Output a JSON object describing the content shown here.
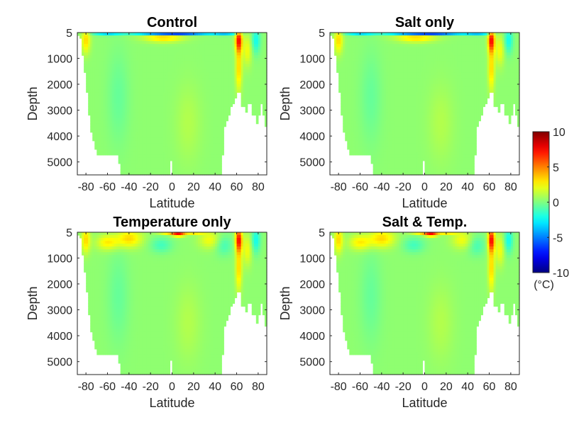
{
  "chart_data": {
    "type": "heatmap",
    "panels": [
      {
        "title": "Control",
        "variant": "control"
      },
      {
        "title": "Salt only",
        "variant": "salt"
      },
      {
        "title": "Temperature only",
        "variant": "temp"
      },
      {
        "title": "Salt & Temp.",
        "variant": "both"
      }
    ],
    "xlabel": "Latitude",
    "ylabel": "Depth",
    "xlim": [
      -88,
      88
    ],
    "ylim": [
      5,
      5500
    ],
    "xticks": [
      "-80",
      "-60",
      "-40",
      "-20",
      "0",
      "20",
      "40",
      "60",
      "80"
    ],
    "xtick_values": [
      -80,
      -60,
      -40,
      -20,
      0,
      20,
      40,
      60,
      80
    ],
    "yticks": [
      "5",
      "1000",
      "2000",
      "3000",
      "4000",
      "5000"
    ],
    "ytick_values": [
      5,
      1000,
      2000,
      3000,
      4000,
      5000
    ],
    "colorbar": {
      "colormap": "jet",
      "range": [
        -10,
        10
      ],
      "ticks": [
        "10",
        "5",
        "0",
        "-5",
        "-10"
      ],
      "tick_values": [
        10,
        5,
        0,
        -5,
        -10
      ],
      "unit": "(°C)"
    },
    "background_value": 0.3,
    "bathymetry_max_depth": [
      [
        -88,
        0
      ],
      [
        -85,
        200
      ],
      [
        -82,
        1200
      ],
      [
        -79,
        2300
      ],
      [
        -77,
        3200
      ],
      [
        -75,
        3900
      ],
      [
        -72,
        4400
      ],
      [
        -69,
        4700
      ],
      [
        -50,
        4700
      ],
      [
        -48,
        5500
      ],
      [
        -3,
        5500
      ],
      [
        -3,
        4900
      ],
      [
        -2,
        4900
      ],
      [
        -2,
        5500
      ],
      [
        -1,
        4900
      ],
      [
        0,
        4900
      ],
      [
        0,
        5500
      ],
      [
        46,
        5500
      ],
      [
        47,
        4700
      ],
      [
        48,
        4300
      ],
      [
        49,
        3600
      ],
      [
        53,
        3200
      ],
      [
        55,
        2900
      ],
      [
        61,
        2300
      ],
      [
        64,
        2300
      ],
      [
        65,
        2900
      ],
      [
        68,
        2900
      ],
      [
        69,
        3100
      ],
      [
        70,
        3100
      ],
      [
        71,
        2700
      ],
      [
        74,
        2700
      ],
      [
        75,
        3200
      ],
      [
        77,
        3200
      ],
      [
        78,
        3500
      ],
      [
        80,
        3500
      ],
      [
        82,
        2800
      ],
      [
        84,
        2800
      ],
      [
        86,
        3600
      ],
      [
        88,
        3600
      ]
    ],
    "anomalies": [
      {
        "variants": [
          "control",
          "salt"
        ],
        "lat": 0,
        "depth": 5,
        "lat_width": 22,
        "depth_width": 80,
        "value": -10
      },
      {
        "variants": [
          "control",
          "salt"
        ],
        "lat": -22,
        "depth": 5,
        "lat_width": 20,
        "depth_width": 60,
        "value": -6
      },
      {
        "variants": [
          "control",
          "salt"
        ],
        "lat": 25,
        "depth": 5,
        "lat_width": 20,
        "depth_width": 60,
        "value": -6
      },
      {
        "variants": [
          "control",
          "salt"
        ],
        "lat": -60,
        "depth": 20,
        "lat_width": 14,
        "depth_width": 90,
        "value": -4
      },
      {
        "variants": [
          "control",
          "salt"
        ],
        "lat": 50,
        "depth": 20,
        "lat_width": 12,
        "depth_width": 90,
        "value": -4
      },
      {
        "variants": [
          "control",
          "salt"
        ],
        "lat": -8,
        "depth": 200,
        "lat_width": 18,
        "depth_width": 180,
        "value": 3
      },
      {
        "variants": [
          "temp",
          "both"
        ],
        "lat": 6,
        "depth": 60,
        "lat_width": 6,
        "depth_width": 110,
        "value": 6
      },
      {
        "variants": [
          "temp",
          "both"
        ],
        "lat": -3,
        "depth": 30,
        "lat_width": 10,
        "depth_width": 60,
        "value": 3
      },
      {
        "variants": [
          "temp",
          "both"
        ],
        "lat": 20,
        "depth": 40,
        "lat_width": 10,
        "depth_width": 60,
        "value": 2.5
      },
      {
        "variants": [
          "temp",
          "both"
        ],
        "lat": -40,
        "depth": 250,
        "lat_width": 12,
        "depth_width": 350,
        "value": 3
      },
      {
        "variants": [
          "temp",
          "both"
        ],
        "lat": -60,
        "depth": 400,
        "lat_width": 10,
        "depth_width": 300,
        "value": 2.5
      },
      {
        "variants": [
          "temp",
          "both"
        ],
        "lat": 35,
        "depth": 300,
        "lat_width": 10,
        "depth_width": 350,
        "value": 2
      },
      {
        "variants": [
          "temp",
          "both"
        ],
        "lat": -10,
        "depth": 500,
        "lat_width": 10,
        "depth_width": 300,
        "value": -1.5
      },
      {
        "variants": [
          "temp",
          "both"
        ],
        "lat": 48,
        "depth": 500,
        "lat_width": 8,
        "depth_width": 400,
        "value": -1.5
      },
      {
        "variants": [
          "control",
          "salt",
          "temp",
          "both"
        ],
        "lat": 62,
        "depth": 300,
        "lat_width": 3,
        "depth_width": 450,
        "value": 7
      },
      {
        "variants": [
          "control",
          "salt",
          "temp",
          "both"
        ],
        "lat": 62,
        "depth": 1400,
        "lat_width": 3,
        "depth_width": 900,
        "value": 3
      },
      {
        "variants": [
          "control",
          "salt",
          "temp",
          "both"
        ],
        "lat": 70,
        "depth": 700,
        "lat_width": 4,
        "depth_width": 600,
        "value": 2
      },
      {
        "variants": [
          "control",
          "salt",
          "temp",
          "both"
        ],
        "lat": 78,
        "depth": 300,
        "lat_width": 4,
        "depth_width": 500,
        "value": -2.5
      },
      {
        "variants": [
          "control",
          "salt",
          "temp",
          "both"
        ],
        "lat": -80,
        "depth": 300,
        "lat_width": 4,
        "depth_width": 500,
        "value": 3
      },
      {
        "variants": [
          "control",
          "salt",
          "temp",
          "both"
        ],
        "lat": -50,
        "depth": 2500,
        "lat_width": 10,
        "depth_width": 1800,
        "value": -0.8
      },
      {
        "variants": [
          "control",
          "salt",
          "temp",
          "both"
        ],
        "lat": 15,
        "depth": 3500,
        "lat_width": 12,
        "depth_width": 1500,
        "value": 0.7
      }
    ]
  }
}
